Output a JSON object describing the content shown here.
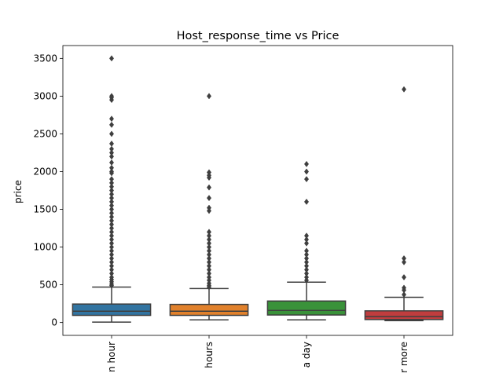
{
  "chart_data": {
    "type": "box",
    "title": "Host_response_time vs Price",
    "xlabel": "",
    "ylabel": "price",
    "ylim": [
      -170,
      3670
    ],
    "yticks": [
      0,
      500,
      1000,
      1500,
      2000,
      2500,
      3000,
      3500
    ],
    "grid": false,
    "categories": [
      "within an hour",
      "within a few hours",
      "within a day",
      "a few days or more"
    ],
    "category_labels_visible": [
      "n hour",
      "hours",
      "a day",
      "r more"
    ],
    "colors": [
      "#3274a1",
      "#e1812c",
      "#3a923a",
      "#c03d3e"
    ],
    "boxes": [
      {
        "q1": 95,
        "median": 150,
        "q3": 245,
        "whisker_low": 5,
        "whisker_high": 470,
        "outliers": [
          3500,
          3000,
          2980,
          2950,
          2700,
          2620,
          2500,
          2370,
          2300,
          2250,
          2200,
          2120,
          2050,
          2000,
          1980,
          1900,
          1850,
          1800,
          1750,
          1700,
          1650,
          1600,
          1550,
          1500,
          1450,
          1400,
          1350,
          1300,
          1250,
          1200,
          1150,
          1100,
          1050,
          1000,
          950,
          900,
          850,
          800,
          750,
          700,
          650,
          600,
          570,
          540,
          510,
          490
        ]
      },
      {
        "q1": 95,
        "median": 150,
        "q3": 240,
        "whisker_low": 35,
        "whisker_high": 450,
        "outliers": [
          3000,
          1990,
          1950,
          1920,
          1790,
          1650,
          1520,
          1480,
          1200,
          1150,
          1100,
          1050,
          1000,
          950,
          900,
          850,
          800,
          750,
          700,
          650,
          600,
          560,
          520,
          490,
          470
        ]
      },
      {
        "q1": 100,
        "median": 160,
        "q3": 285,
        "whisker_low": 35,
        "whisker_high": 535,
        "outliers": [
          2100,
          2000,
          1900,
          1600,
          1150,
          1100,
          1050,
          950,
          900,
          850,
          800,
          750,
          700,
          650,
          600,
          560
        ]
      },
      {
        "q1": 40,
        "median": 80,
        "q3": 155,
        "whisker_low": 25,
        "whisker_high": 335,
        "outliers": [
          3090,
          850,
          800,
          600,
          460,
          430,
          370
        ]
      }
    ]
  }
}
